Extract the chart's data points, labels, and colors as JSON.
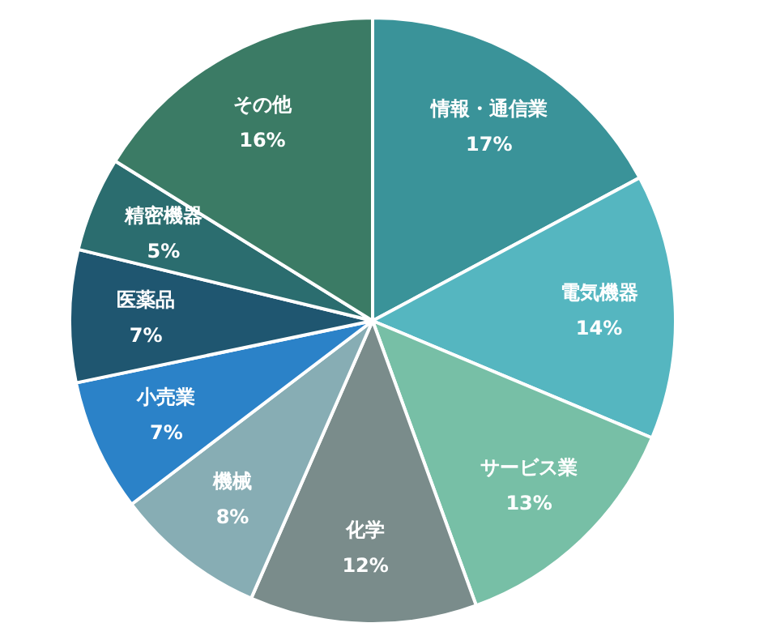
{
  "chart_data": {
    "type": "pie",
    "categories": [
      "情報・通信業",
      "電気機器",
      "サービス業",
      "化学",
      "機械",
      "小売業",
      "医薬品",
      "精密機器",
      "その他"
    ],
    "values": [
      17,
      14,
      13,
      12,
      8,
      7,
      7,
      5,
      16
    ],
    "value_labels": [
      "17%",
      "14%",
      "13%",
      "12%",
      "8%",
      "7%",
      "7%",
      "5%",
      "16%"
    ],
    "colors": [
      "#3a9399",
      "#55b6c0",
      "#77bfa6",
      "#7a8c8b",
      "#87adb4",
      "#2b82c8",
      "#1f5670",
      "#2b6d6f",
      "#3b7b65"
    ],
    "legend": false
  }
}
